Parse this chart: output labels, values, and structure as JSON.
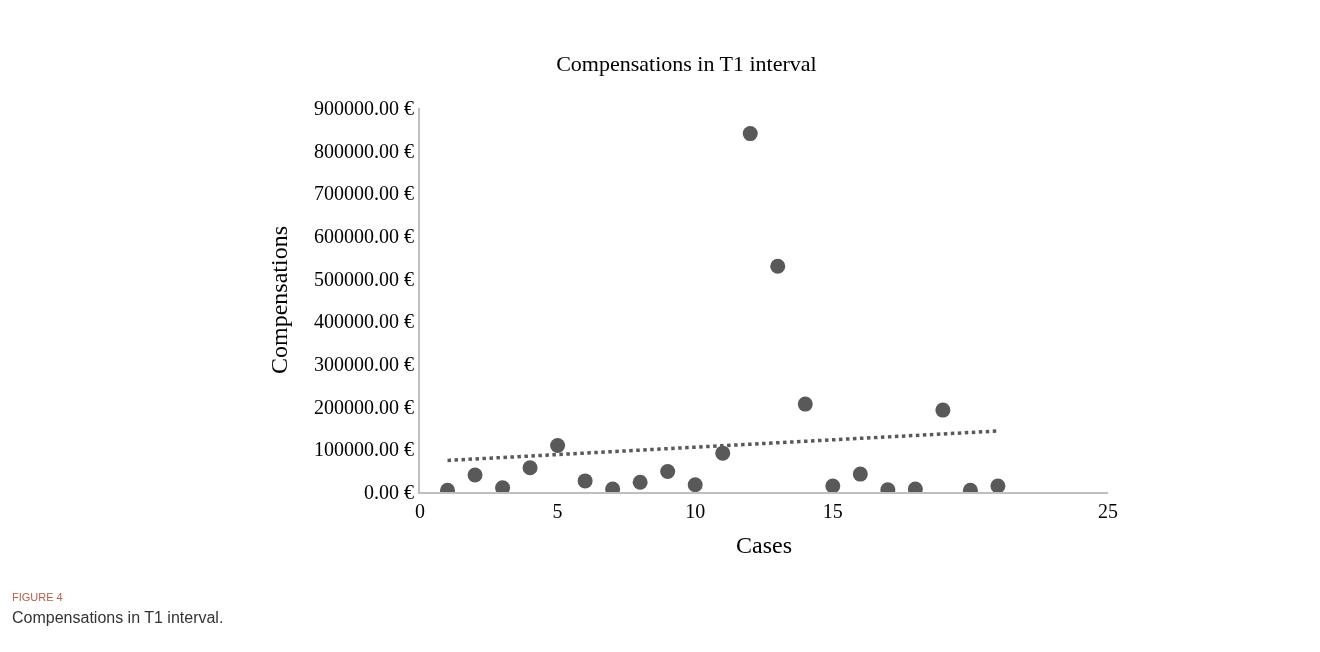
{
  "chart_data": {
    "type": "scatter",
    "title": "Compensations in T1 interval",
    "xlabel": "Cases",
    "ylabel": "Compensations",
    "series": [
      {
        "marker": "circle",
        "color": "#595959",
        "x": [
          1,
          2,
          3,
          4,
          5,
          6,
          7,
          8,
          9,
          10,
          11,
          12,
          13,
          14,
          15,
          16,
          17,
          18,
          19,
          20,
          21
        ],
        "values": [
          4000,
          40000,
          10000,
          57000,
          109000,
          26000,
          7000,
          23000,
          48000,
          17000,
          91000,
          840000,
          529000,
          206000,
          14000,
          42000,
          5000,
          7000,
          192000,
          4000,
          14000
        ]
      },
      {
        "type": "line",
        "color": "#595959",
        "line_style": "dotted",
        "x": [
          1,
          21
        ],
        "values": [
          74000,
          143000
        ]
      }
    ],
    "xlim": [
      0,
      25
    ],
    "xticks": [
      0,
      5,
      10,
      15,
      25
    ],
    "ylim": [
      0,
      900000
    ],
    "yticks": [
      {
        "value": 0,
        "label": "0.00 €"
      },
      {
        "value": 100000,
        "label": "100000.00 €"
      },
      {
        "value": 200000,
        "label": "200000.00 €"
      },
      {
        "value": 300000,
        "label": "300000.00 €"
      },
      {
        "value": 400000,
        "label": "400000.00 €"
      },
      {
        "value": 500000,
        "label": "500000.00 €"
      },
      {
        "value": 600000,
        "label": "600000.00 €"
      },
      {
        "value": 700000,
        "label": "700000.00 €"
      },
      {
        "value": 800000,
        "label": "800000.00 €"
      },
      {
        "value": 900000,
        "label": "900000.00 €"
      }
    ],
    "annotations": [
      "FIGURE 4",
      "Compensations in T1 interval."
    ]
  }
}
